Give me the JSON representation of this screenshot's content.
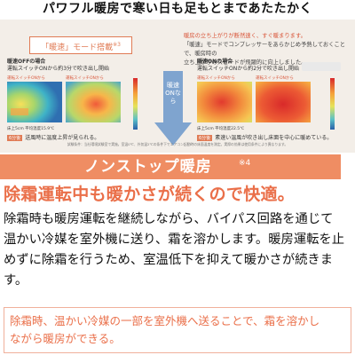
{
  "header": {
    "title": "パワフル暖房で寒い日も足もとまであたたかく"
  },
  "figure": {
    "mode_badge": "「暖速」モード搭載",
    "mode_badge_sup": "※3",
    "intro": {
      "line1": "暖房の立ち上がりが断然速く、すぐ暖まります。",
      "line2": "「暖速」モードでコンプレッサーをあらかじめ予熱しておくことで、暖房時の",
      "line3": "立ち上がりのスピードが飛躍的に向上しました。"
    },
    "left_panel": {
      "title": "暖速OFFの場合",
      "desc": "運転スイッチONから約3分で吹き出し開始",
      "label_a": "運転スイッチONから",
      "label_b": "運転スイッチONから",
      "caption": "床上5cm 平均温度15.9℃",
      "tag": "6分後",
      "result": "送風時に温度上昇が見られる。"
    },
    "middle": {
      "text": "暖速ONなら"
    },
    "right_panel": {
      "title": "暖速ONの場合",
      "desc": "運転スイッチONから約2分で吹き出し開始",
      "label_a": "運転スイッチONから",
      "label_b": "運転スイッチONから",
      "caption": "床上5cm 平均温度22.5℃",
      "tag": "6分後",
      "result": "素速い温風が吹き出し床面を中心に暖めている。"
    },
    "footnote": "試験条件：当社環境試験室で実施。室温0℃、外気温2℃の条件下でエアコン起動時の床面温度を測定。実際の効果は使用条件により異なります。"
  },
  "banner": {
    "title": "ノンストップ暖房",
    "sup": "※4"
  },
  "subhead": "除霜運転中も暖かさが続くので快適。",
  "body": {
    "line1": "除霜時も暖房運転を継続しながら、バイパス回路を通じて",
    "line2": "温かい冷媒を室外機に送り、霜を溶かします。暖房運転を止",
    "line3": "めずに除霜を行うため、室温低下を抑えて暖かさが続きます。"
  },
  "note": {
    "line1": "除霜時、温かい冷媒の一部を室外機へ送ることで、霜を溶かし",
    "line2": "ながら暖房ができる。"
  },
  "colors": {
    "accent": "#ef8d63",
    "accent_text": "#ea6f49",
    "figure_bg": "#f3eee8"
  }
}
